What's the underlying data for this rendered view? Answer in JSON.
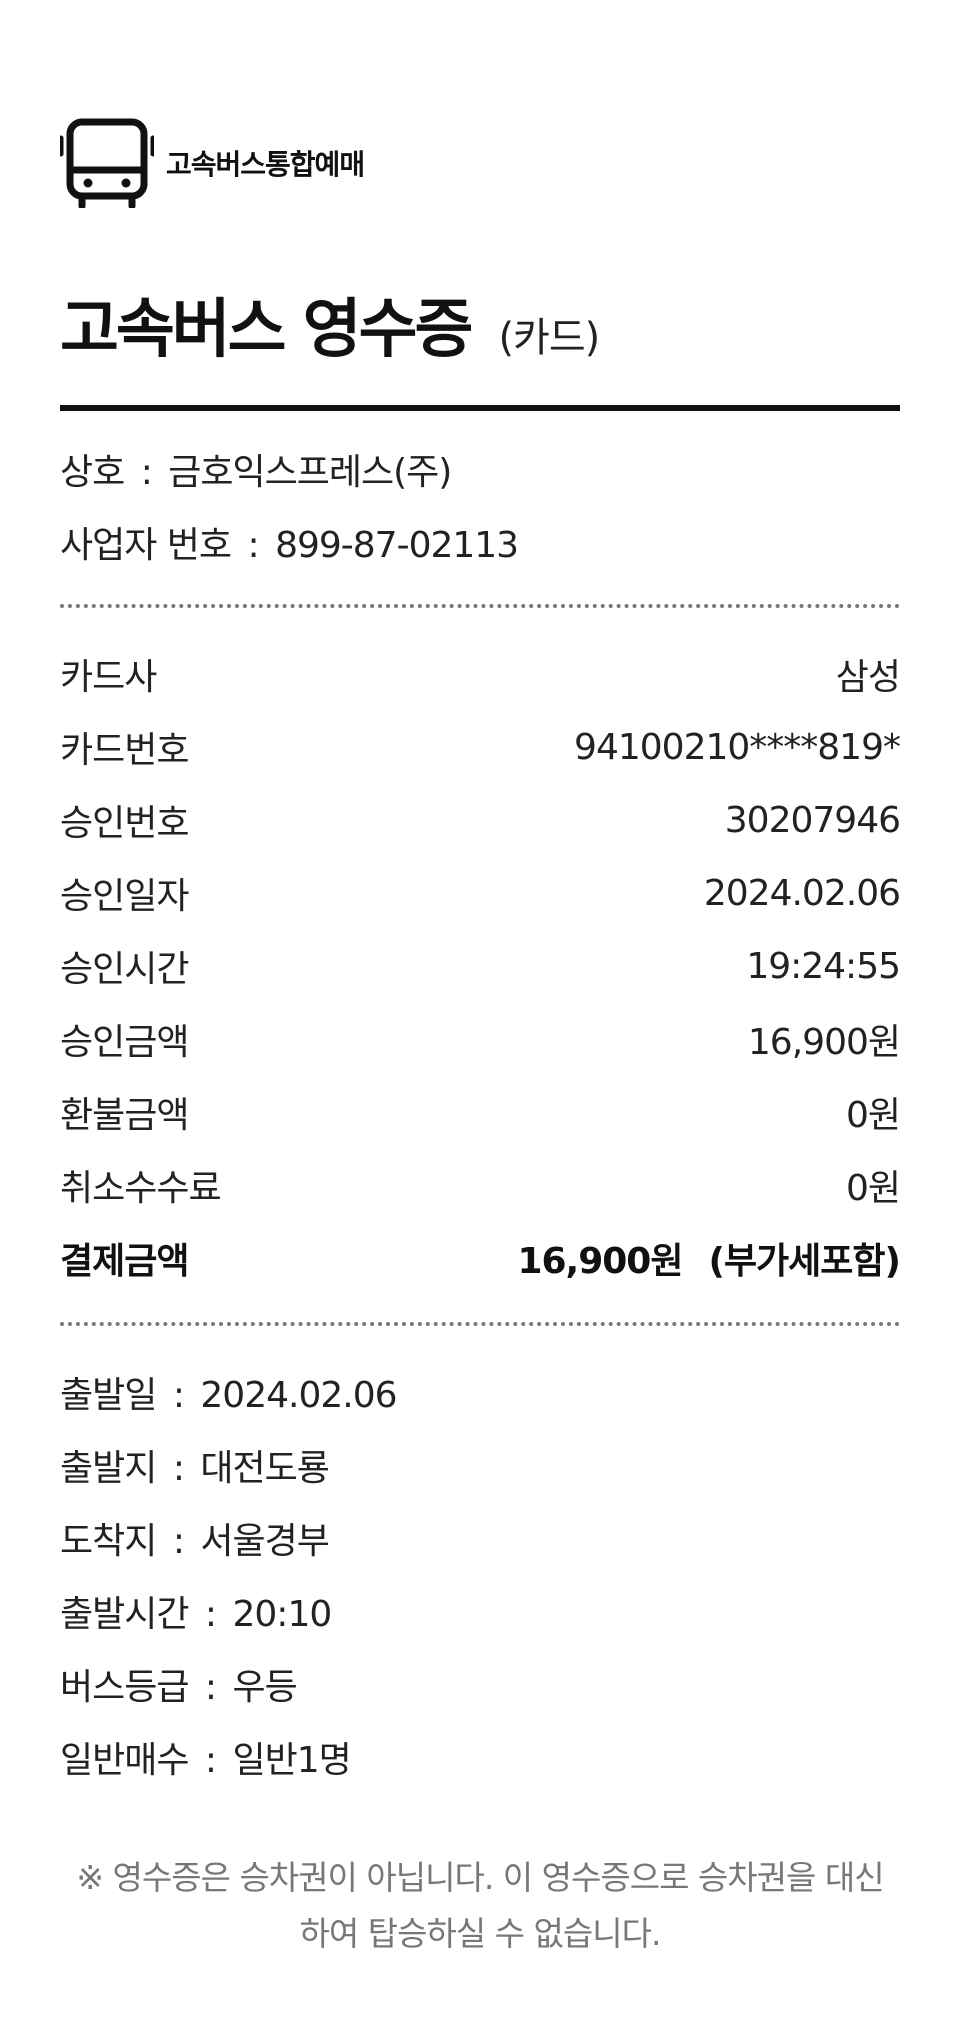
{
  "header": {
    "logo_text": "고속버스통합예매",
    "title": "고속버스 영수증",
    "title_sub": "(카드)"
  },
  "business": {
    "company_label": "상호",
    "company_value": "금호익스프레스(주)",
    "bizno_label": "사업자 번호",
    "bizno_value": "899-87-02113"
  },
  "payment": {
    "rows": [
      {
        "label": "카드사",
        "value": "삼성"
      },
      {
        "label": "카드번호",
        "value": "94100210****819*"
      },
      {
        "label": "승인번호",
        "value": "30207946"
      },
      {
        "label": "승인일자",
        "value": "2024.02.06"
      },
      {
        "label": "승인시간",
        "value": "19:24:55"
      },
      {
        "label": "승인금액",
        "value": "16,900원"
      },
      {
        "label": "환불금액",
        "value": "0원"
      },
      {
        "label": "취소수수료",
        "value": "0원"
      }
    ],
    "total_label": "결제금액",
    "total_value": "16,900원",
    "total_vat": "(부가세포함)"
  },
  "trip": {
    "rows": [
      {
        "label": "출발일",
        "value": "2024.02.06"
      },
      {
        "label": "출발지",
        "value": "대전도룡"
      },
      {
        "label": "도착지",
        "value": "서울경부"
      },
      {
        "label": "출발시간",
        "value": "20:10"
      },
      {
        "label": "버스등급",
        "value": "우등"
      },
      {
        "label": "일반매수",
        "value": "일반1명"
      }
    ]
  },
  "notice": {
    "line1": "※ 영수증은 승차권이 아닙니다. 이 영수증으로 승차권을 대신",
    "line2": "하여 탑승하실 수 없습니다."
  }
}
